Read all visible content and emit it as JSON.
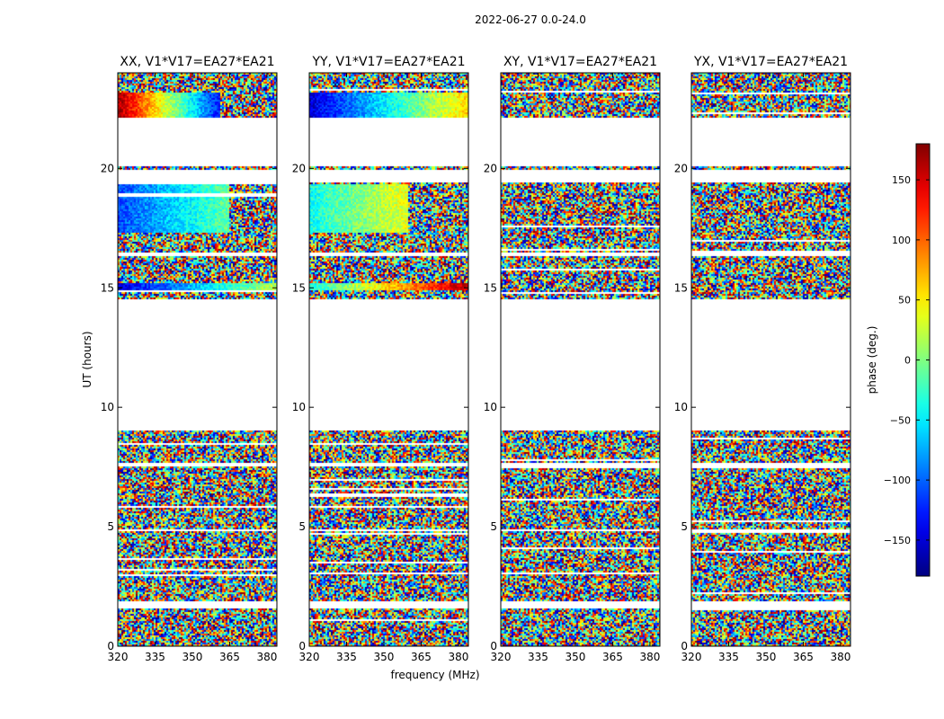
{
  "figure_title": "2022-06-27 0.0-24.0",
  "chart_data": [
    {
      "type": "heatmap",
      "title": "XX, V1*V17=EA27*EA21",
      "ylabel": "UT (hours)",
      "xlabel": "",
      "xlim": [
        320,
        384
      ],
      "ylim": [
        0,
        24
      ],
      "xticks": [
        "320",
        "335",
        "350",
        "365",
        "380"
      ],
      "yticks": [
        "0",
        "5",
        "10",
        "15",
        "20"
      ],
      "coherent_blocks": [
        {
          "t_range": [
            21.5,
            23.2
          ],
          "f_range": [
            320,
            361
          ],
          "phase_start": 170,
          "phase_end": -130
        },
        {
          "t_range": [
            17.3,
            19.3
          ],
          "f_range": [
            320,
            365
          ],
          "phase_start": -110,
          "phase_end": -10
        },
        {
          "t_range": [
            14.9,
            15.2
          ],
          "f_range": [
            320,
            384
          ],
          "phase_start": -150,
          "phase_end": 20
        }
      ]
    },
    {
      "type": "heatmap",
      "title": "YY, V1*V17=EA27*EA21",
      "ylabel": "",
      "xlabel": "frequency (MHz)",
      "xlim": [
        320,
        384
      ],
      "ylim": [
        0,
        24
      ],
      "xticks": [
        "320",
        "335",
        "350",
        "365",
        "380"
      ],
      "yticks": [
        "0",
        "5",
        "10",
        "15",
        "20"
      ],
      "coherent_blocks": [
        {
          "t_range": [
            21.5,
            23.2
          ],
          "f_range": [
            320,
            384
          ],
          "phase_start": -150,
          "phase_end": 60
        },
        {
          "t_range": [
            17.3,
            19.3
          ],
          "f_range": [
            320,
            360
          ],
          "phase_start": -40,
          "phase_end": 40
        },
        {
          "t_range": [
            14.9,
            15.2
          ],
          "f_range": [
            320,
            384
          ],
          "phase_start": -40,
          "phase_end": 160
        }
      ]
    },
    {
      "type": "heatmap",
      "title": "XY, V1*V17=EA27*EA21",
      "ylabel": "",
      "xlabel": "",
      "xlim": [
        320,
        384
      ],
      "ylim": [
        0,
        24
      ],
      "xticks": [
        "320",
        "335",
        "350",
        "365",
        "380"
      ],
      "yticks": [
        "0",
        "5",
        "10",
        "15",
        "20"
      ],
      "coherent_blocks": []
    },
    {
      "type": "heatmap",
      "title": "YX, V1*V17=EA27*EA21",
      "ylabel": "",
      "xlabel": "",
      "xlim": [
        320,
        384
      ],
      "ylim": [
        0,
        24
      ],
      "xticks": [
        "320",
        "335",
        "350",
        "365",
        "380"
      ],
      "yticks": [
        "0",
        "5",
        "10",
        "15",
        "20"
      ],
      "coherent_blocks": []
    }
  ],
  "colorbar": {
    "label": "phase (deg.)",
    "range": [
      -180,
      180
    ],
    "ticks": [
      "150",
      "100",
      "50",
      "0",
      "−50",
      "−100",
      "−150"
    ],
    "tick_values": [
      150,
      100,
      50,
      0,
      -50,
      -100,
      -150
    ],
    "colormap": "jet"
  },
  "data_coverage_hours": [
    [
      0.0,
      1.6
    ],
    [
      1.9,
      4.8
    ],
    [
      4.9,
      7.5
    ],
    [
      7.7,
      9.0
    ],
    [
      14.5,
      16.3
    ],
    [
      16.5,
      19.4
    ],
    [
      19.9,
      20.1
    ],
    [
      22.1,
      24.0
    ]
  ]
}
